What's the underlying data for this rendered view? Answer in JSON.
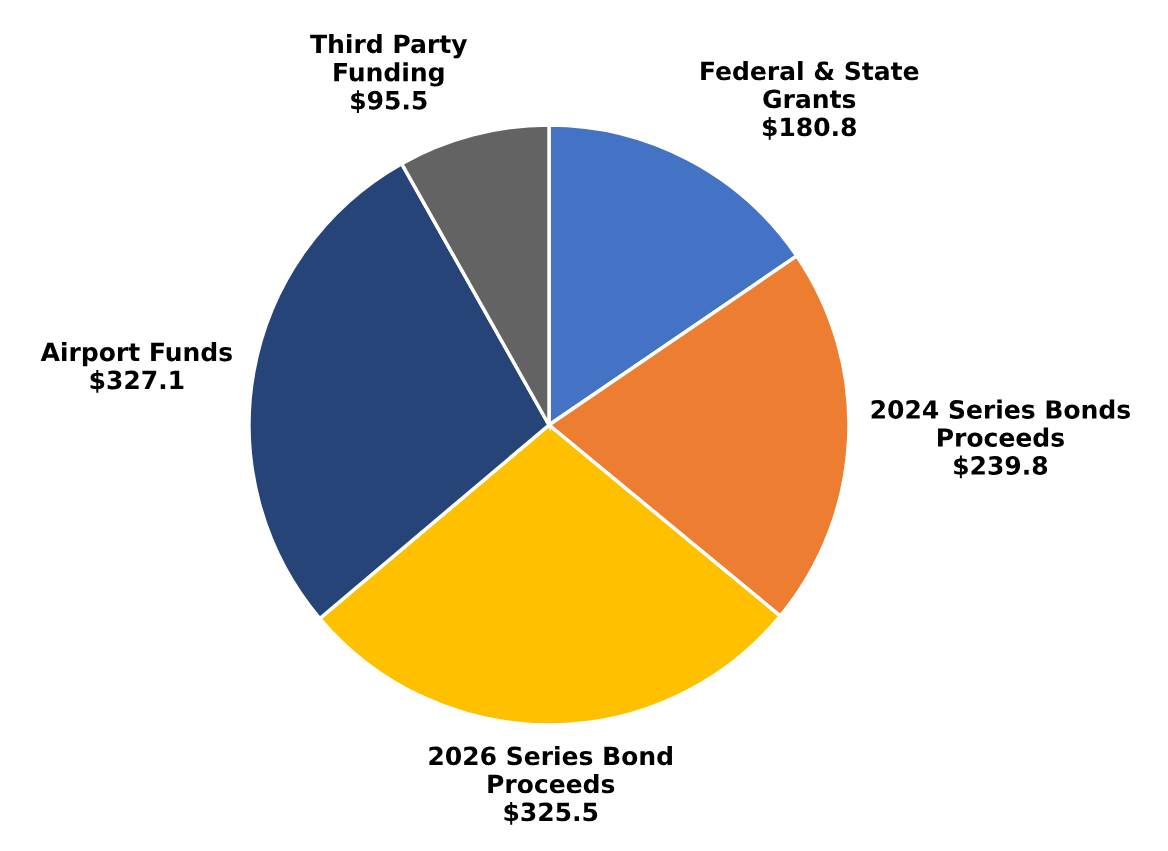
{
  "chart_data": {
    "type": "pie",
    "categories": [
      "Federal & State\nGrants",
      "2024 Series Bonds\nProceeds",
      "2026 Series Bond\nProceeds",
      "Airport Funds",
      "Third Party\nFunding"
    ],
    "values": [
      180.8,
      239.8,
      325.5,
      327.1,
      95.5
    ],
    "value_labels": [
      "$180.8",
      "$239.8",
      "$325.5",
      "$327.1",
      "$95.5"
    ],
    "colors": [
      "#4472c4",
      "#ed7d31",
      "#ffc000",
      "#264478",
      "#636363"
    ],
    "legend": false
  }
}
